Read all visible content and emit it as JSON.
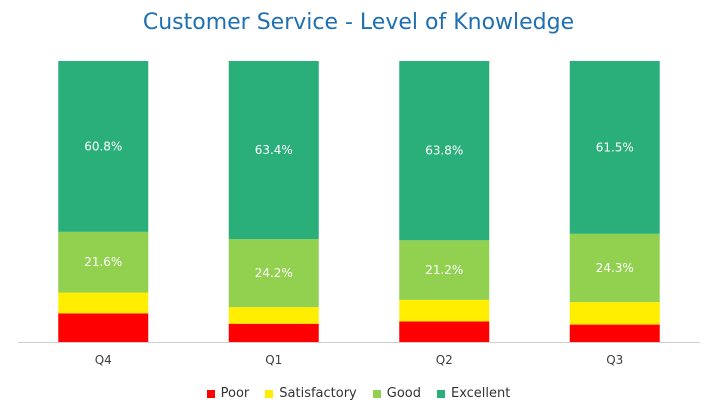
{
  "chart_data": {
    "type": "bar",
    "stacked": true,
    "title": "Customer Service - Level of Knowledge",
    "xlabel": "",
    "ylabel": "",
    "ylim": [
      0,
      100
    ],
    "grid": false,
    "legend_position": "bottom",
    "categories": [
      "Q4",
      "Q1",
      "Q2",
      "Q3"
    ],
    "series": [
      {
        "name": "Poor",
        "color": "#ff0000",
        "values": [
          10.2,
          6.5,
          7.3,
          6.2
        ],
        "labels": [
          "",
          "",
          "",
          ""
        ]
      },
      {
        "name": "Satisfactory",
        "color": "#ffee00",
        "values": [
          7.4,
          5.9,
          7.7,
          8.0
        ],
        "labels": [
          "",
          "",
          "",
          ""
        ]
      },
      {
        "name": "Good",
        "color": "#92d050",
        "values": [
          21.6,
          24.2,
          21.2,
          24.3
        ],
        "labels": [
          "21.6%",
          "24.2%",
          "21.2%",
          "24.3%"
        ]
      },
      {
        "name": "Excellent",
        "color": "#2aae7a",
        "values": [
          60.8,
          63.4,
          63.8,
          61.5
        ],
        "labels": [
          "60.8%",
          "63.4%",
          "63.8%",
          "61.5%"
        ]
      }
    ]
  }
}
